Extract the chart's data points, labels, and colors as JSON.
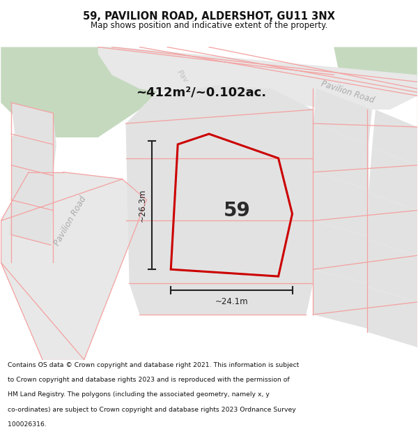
{
  "title_line1": "59, PAVILION ROAD, ALDERSHOT, GU11 3NX",
  "title_line2": "Map shows position and indicative extent of the property.",
  "area_label": "~412m²/~0.102ac.",
  "house_number": "59",
  "dim_width": "~24.1m",
  "dim_height": "~26.3m",
  "road_label_left": "Pavilion Road",
  "road_label_right": "Pavilion Road",
  "road_label_top": "Pav",
  "bg_white": "#ffffff",
  "map_bg": "#f7f7f7",
  "green_color": "#c5d9be",
  "plot_gray": "#e2e2e2",
  "plot_gray2": "#d8d8d8",
  "cadastral_color": "#f5a0a0",
  "road_gray": "#e8e8e8",
  "red_poly_color": "#cc0000",
  "dim_color": "#222222",
  "label_gray": "#aaaaaa",
  "title_color": "#111111",
  "footer_color": "#111111",
  "footer_lines": [
    "Contains OS data © Crown copyright and database right 2021. This information is subject",
    "to Crown copyright and database rights 2023 and is reproduced with the permission of",
    "HM Land Registry. The polygons (including the associated geometry, namely x, y",
    "co-ordinates) are subject to Crown copyright and database rights 2023 Ordnance Survey",
    "100026316."
  ]
}
